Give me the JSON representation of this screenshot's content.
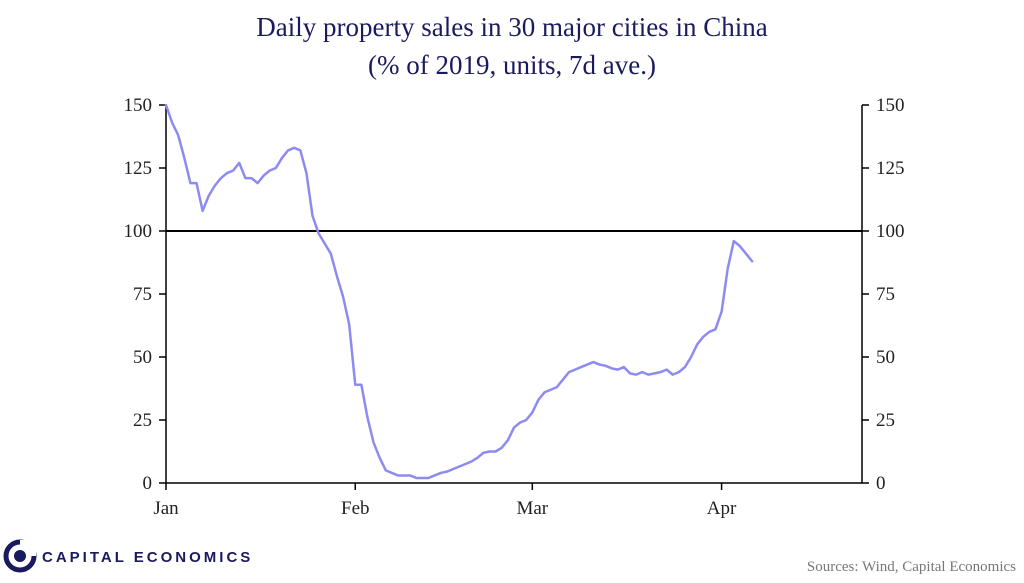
{
  "chart_data": {
    "type": "line",
    "title": "Daily property sales in 30 major cities in China",
    "subtitle": "(% of 2019, units, 7d ave.)",
    "xlabel": "",
    "ylabel": "",
    "x_ticks": [
      "Jan",
      "Feb",
      "Mar",
      "Apr"
    ],
    "xlim": [
      0,
      114
    ],
    "ylim": [
      0,
      150
    ],
    "y_ticks": [
      0,
      25,
      50,
      75,
      100,
      125,
      150
    ],
    "reference_line": 100,
    "grid": false,
    "line_color": "#8c8cf0",
    "series": [
      {
        "values": [
          [
            0,
            150
          ],
          [
            1,
            143
          ],
          [
            2,
            138
          ],
          [
            3,
            129
          ],
          [
            4,
            119
          ],
          [
            5,
            119
          ],
          [
            6,
            108
          ],
          [
            7,
            114
          ],
          [
            8,
            118
          ],
          [
            9,
            121
          ],
          [
            10,
            123
          ],
          [
            11,
            124
          ],
          [
            12,
            127
          ],
          [
            13,
            121
          ],
          [
            14,
            121
          ],
          [
            15,
            119
          ],
          [
            16,
            122
          ],
          [
            17,
            124
          ],
          [
            18,
            125
          ],
          [
            19,
            129
          ],
          [
            20,
            132
          ],
          [
            21,
            133
          ],
          [
            22,
            132
          ],
          [
            23,
            123
          ],
          [
            24,
            106
          ],
          [
            25,
            99
          ],
          [
            26,
            95
          ],
          [
            27,
            91
          ],
          [
            28,
            82
          ],
          [
            29,
            74
          ],
          [
            30,
            63
          ],
          [
            31,
            39
          ],
          [
            32,
            39
          ],
          [
            33,
            26
          ],
          [
            34,
            16
          ],
          [
            35,
            10
          ],
          [
            36,
            5
          ],
          [
            37,
            4
          ],
          [
            38,
            3
          ],
          [
            39,
            3
          ],
          [
            40,
            3
          ],
          [
            41,
            2
          ],
          [
            42,
            2
          ],
          [
            43,
            2
          ],
          [
            44,
            3
          ],
          [
            45,
            4
          ],
          [
            46,
            4.5
          ],
          [
            47,
            5.5
          ],
          [
            48,
            6.5
          ],
          [
            49,
            7.5
          ],
          [
            50,
            8.5
          ],
          [
            51,
            10
          ],
          [
            52,
            12
          ],
          [
            53,
            12.5
          ],
          [
            54,
            12.5
          ],
          [
            55,
            14
          ],
          [
            56,
            17
          ],
          [
            57,
            22
          ],
          [
            58,
            24
          ],
          [
            59,
            25
          ],
          [
            60,
            28
          ],
          [
            61,
            33
          ],
          [
            62,
            36
          ],
          [
            63,
            37
          ],
          [
            64,
            38
          ],
          [
            65,
            41
          ],
          [
            66,
            44
          ],
          [
            67,
            45
          ],
          [
            68,
            46
          ],
          [
            69,
            47
          ],
          [
            70,
            48
          ],
          [
            71,
            47
          ],
          [
            72,
            46.5
          ],
          [
            73,
            45.5
          ],
          [
            74,
            45
          ],
          [
            75,
            46
          ],
          [
            76,
            43.5
          ],
          [
            77,
            43
          ],
          [
            78,
            44
          ],
          [
            79,
            43
          ],
          [
            80,
            43.5
          ],
          [
            81,
            44
          ],
          [
            82,
            45
          ],
          [
            83,
            43
          ],
          [
            84,
            44
          ],
          [
            85,
            46
          ],
          [
            86,
            50
          ],
          [
            87,
            55
          ],
          [
            88,
            58
          ],
          [
            89,
            60
          ],
          [
            90,
            61
          ],
          [
            91,
            68
          ],
          [
            92,
            85
          ],
          [
            93,
            96
          ],
          [
            94,
            94
          ],
          [
            95,
            91
          ],
          [
            96,
            88
          ]
        ]
      }
    ]
  },
  "footer": {
    "brand": "CAPITAL ECONOMICS",
    "sources": "Sources: Wind, Capital Economics"
  }
}
